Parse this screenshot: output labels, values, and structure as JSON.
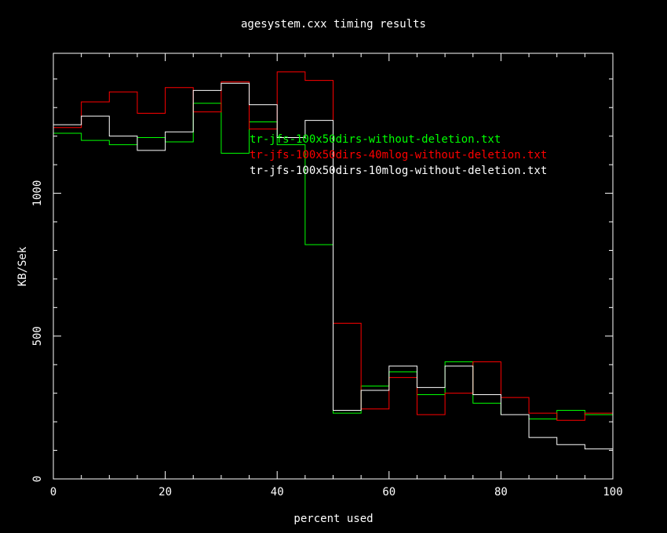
{
  "chart_data": {
    "type": "line",
    "step": true,
    "title": "agesystem.cxx timing results",
    "xlabel": "percent used",
    "ylabel": "KB/Sek",
    "xlim": [
      0,
      100
    ],
    "ylim": [
      0,
      1490
    ],
    "xticks": [
      0,
      20,
      40,
      60,
      80,
      100
    ],
    "yticks": [
      0,
      500,
      1000
    ],
    "bin_edges": [
      0,
      5,
      10,
      15,
      20,
      25,
      30,
      35,
      40,
      45,
      50,
      55,
      60,
      65,
      70,
      75,
      80,
      85,
      90,
      95,
      100
    ],
    "series": [
      {
        "name": "tr-jfs-100x50dirs-without-deletion.txt",
        "color": "#00ff00",
        "values": [
          1210,
          1185,
          1170,
          1195,
          1180,
          1315,
          1140,
          1250,
          1170,
          820,
          230,
          325,
          375,
          295,
          410,
          265,
          225,
          210,
          240,
          225
        ]
      },
      {
        "name": "tr-jfs-100x50dirs-40mlog-without-deletion.txt",
        "color": "#ff0000",
        "values": [
          1230,
          1320,
          1355,
          1280,
          1370,
          1285,
          1390,
          1225,
          1425,
          1395,
          545,
          245,
          355,
          225,
          300,
          410,
          285,
          230,
          205,
          230
        ]
      },
      {
        "name": "tr-jfs-100x50dirs-10mlog-without-deletion.txt",
        "color": "#ffffff",
        "values": [
          1240,
          1270,
          1200,
          1150,
          1215,
          1360,
          1385,
          1310,
          1195,
          1255,
          240,
          310,
          395,
          320,
          395,
          295,
          225,
          145,
          120,
          105
        ]
      }
    ]
  }
}
